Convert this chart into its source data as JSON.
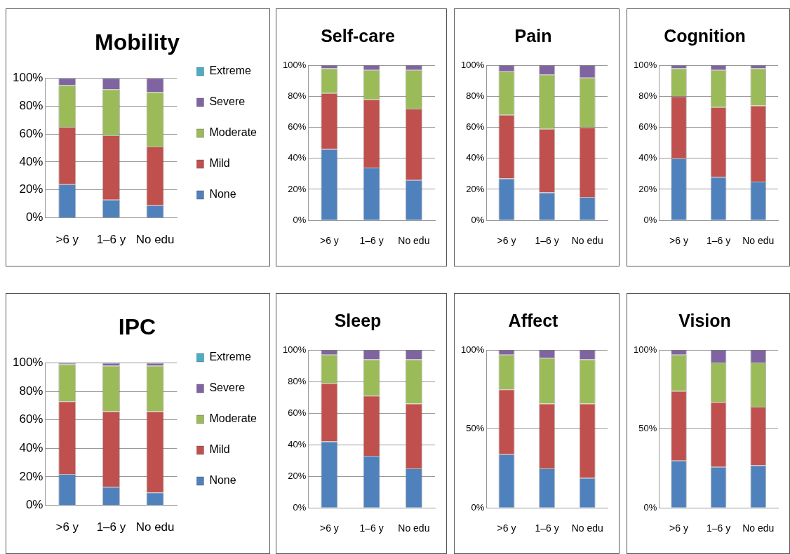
{
  "chart_data": [
    {
      "type": "bar",
      "title": "Mobility",
      "categories": [
        ">6 y",
        "1–6 y",
        "No edu"
      ],
      "stacked": true,
      "legend": "right",
      "grid": "y",
      "ylim": [
        0,
        100
      ],
      "yticks": [
        {
          "value": 0,
          "label": "0%"
        },
        {
          "value": 20,
          "label": "20%"
        },
        {
          "value": 40,
          "label": "40%"
        },
        {
          "value": 60,
          "label": "60%"
        },
        {
          "value": 80,
          "label": "80%"
        },
        {
          "value": 100,
          "label": "100%"
        }
      ],
      "series": [
        {
          "name": "None",
          "color": "#4f81bd",
          "values": [
            24,
            13,
            9
          ]
        },
        {
          "name": "Mild",
          "color": "#c0504d",
          "values": [
            41,
            46,
            42
          ]
        },
        {
          "name": "Moderate",
          "color": "#9bbb59",
          "values": [
            30,
            33,
            39
          ]
        },
        {
          "name": "Severe",
          "color": "#8064a2",
          "values": [
            5,
            8,
            10
          ]
        },
        {
          "name": "Extreme",
          "color": "#4bacc6",
          "values": [
            0,
            0,
            0
          ]
        }
      ]
    },
    {
      "type": "bar",
      "title": "Self-care",
      "categories": [
        ">6 y",
        "1–6 y",
        "No edu"
      ],
      "stacked": true,
      "grid": "y",
      "ylim": [
        0,
        100
      ],
      "yticks": [
        {
          "value": 0,
          "label": "0%"
        },
        {
          "value": 20,
          "label": "20%"
        },
        {
          "value": 40,
          "label": "40%"
        },
        {
          "value": 60,
          "label": "60%"
        },
        {
          "value": 80,
          "label": "80%"
        },
        {
          "value": 100,
          "label": "100%"
        }
      ],
      "series": [
        {
          "color": "#4f81bd",
          "values": [
            46,
            34,
            26
          ]
        },
        {
          "color": "#c0504d",
          "values": [
            36,
            44,
            46
          ]
        },
        {
          "color": "#9bbb59",
          "values": [
            16,
            19,
            25
          ]
        },
        {
          "color": "#8064a2",
          "values": [
            2,
            3,
            3
          ]
        }
      ]
    },
    {
      "type": "bar",
      "title": "Pain",
      "categories": [
        ">6 y",
        "1–6 y",
        "No edu"
      ],
      "stacked": true,
      "grid": "y",
      "ylim": [
        0,
        100
      ],
      "yticks": [
        {
          "value": 0,
          "label": "0%"
        },
        {
          "value": 20,
          "label": "20%"
        },
        {
          "value": 40,
          "label": "40%"
        },
        {
          "value": 60,
          "label": "60%"
        },
        {
          "value": 80,
          "label": "80%"
        },
        {
          "value": 100,
          "label": "100%"
        }
      ],
      "series": [
        {
          "color": "#4f81bd",
          "values": [
            27,
            18,
            15
          ]
        },
        {
          "color": "#c0504d",
          "values": [
            41,
            41,
            45
          ]
        },
        {
          "color": "#9bbb59",
          "values": [
            28,
            35,
            32
          ]
        },
        {
          "color": "#8064a2",
          "values": [
            4,
            6,
            8
          ]
        }
      ]
    },
    {
      "type": "bar",
      "title": "Cognition",
      "categories": [
        ">6 y",
        "1–6 y",
        "No edu"
      ],
      "stacked": true,
      "grid": "y",
      "ylim": [
        0,
        100
      ],
      "yticks": [
        {
          "value": 0,
          "label": "0%"
        },
        {
          "value": 20,
          "label": "20%"
        },
        {
          "value": 40,
          "label": "40%"
        },
        {
          "value": 60,
          "label": "60%"
        },
        {
          "value": 80,
          "label": "80%"
        },
        {
          "value": 100,
          "label": "100%"
        }
      ],
      "series": [
        {
          "color": "#4f81bd",
          "values": [
            40,
            28,
            25
          ]
        },
        {
          "color": "#c0504d",
          "values": [
            40,
            45,
            49
          ]
        },
        {
          "color": "#9bbb59",
          "values": [
            18,
            24,
            24
          ]
        },
        {
          "color": "#8064a2",
          "values": [
            2,
            3,
            2
          ]
        }
      ]
    },
    {
      "type": "bar",
      "title": "IPC",
      "categories": [
        ">6 y",
        "1–6 y",
        "No edu"
      ],
      "stacked": true,
      "legend": "right",
      "grid": "y",
      "ylim": [
        0,
        100
      ],
      "yticks": [
        {
          "value": 0,
          "label": "0%"
        },
        {
          "value": 20,
          "label": "20%"
        },
        {
          "value": 40,
          "label": "40%"
        },
        {
          "value": 60,
          "label": "60%"
        },
        {
          "value": 80,
          "label": "80%"
        },
        {
          "value": 100,
          "label": "100%"
        }
      ],
      "series": [
        {
          "name": "None",
          "color": "#4f81bd",
          "values": [
            22,
            13,
            9
          ]
        },
        {
          "name": "Mild",
          "color": "#c0504d",
          "values": [
            51,
            53,
            57
          ]
        },
        {
          "name": "Moderate",
          "color": "#9bbb59",
          "values": [
            26,
            32,
            32
          ]
        },
        {
          "name": "Severe",
          "color": "#8064a2",
          "values": [
            1,
            2,
            2
          ]
        },
        {
          "name": "Extreme",
          "color": "#4bacc6",
          "values": [
            0,
            0,
            0
          ]
        }
      ]
    },
    {
      "type": "bar",
      "title": "Sleep",
      "categories": [
        ">6 y",
        "1–6 y",
        "No edu"
      ],
      "stacked": true,
      "grid": "y",
      "ylim": [
        0,
        100
      ],
      "yticks": [
        {
          "value": 0,
          "label": "0%"
        },
        {
          "value": 20,
          "label": "20%"
        },
        {
          "value": 40,
          "label": "40%"
        },
        {
          "value": 60,
          "label": "60%"
        },
        {
          "value": 80,
          "label": "80%"
        },
        {
          "value": 100,
          "label": "100%"
        }
      ],
      "series": [
        {
          "color": "#4f81bd",
          "values": [
            42,
            33,
            25
          ]
        },
        {
          "color": "#c0504d",
          "values": [
            37,
            38,
            41
          ]
        },
        {
          "color": "#9bbb59",
          "values": [
            18,
            23,
            28
          ]
        },
        {
          "color": "#8064a2",
          "values": [
            3,
            6,
            6
          ]
        }
      ]
    },
    {
      "type": "bar",
      "title": "Affect",
      "categories": [
        ">6 y",
        "1–6 y",
        "No edu"
      ],
      "stacked": true,
      "grid": "y",
      "ylim": [
        0,
        100
      ],
      "yticks": [
        {
          "value": 0,
          "label": "0%"
        },
        {
          "value": 50,
          "label": "50%"
        },
        {
          "value": 100,
          "label": "100%"
        }
      ],
      "series": [
        {
          "color": "#4f81bd",
          "values": [
            34,
            25,
            19
          ]
        },
        {
          "color": "#c0504d",
          "values": [
            41,
            41,
            47
          ]
        },
        {
          "color": "#9bbb59",
          "values": [
            22,
            29,
            28
          ]
        },
        {
          "color": "#8064a2",
          "values": [
            3,
            5,
            6
          ]
        }
      ]
    },
    {
      "type": "bar",
      "title": "Vision",
      "categories": [
        ">6 y",
        "1–6 y",
        "No edu"
      ],
      "stacked": true,
      "grid": "y",
      "ylim": [
        0,
        100
      ],
      "yticks": [
        {
          "value": 0,
          "label": "0%"
        },
        {
          "value": 50,
          "label": "50%"
        },
        {
          "value": 100,
          "label": "100%"
        }
      ],
      "series": [
        {
          "color": "#4f81bd",
          "values": [
            30,
            26,
            27
          ]
        },
        {
          "color": "#c0504d",
          "values": [
            44,
            41,
            37
          ]
        },
        {
          "color": "#9bbb59",
          "values": [
            23,
            25,
            28
          ]
        },
        {
          "color": "#8064a2",
          "values": [
            3,
            8,
            8
          ]
        }
      ]
    }
  ]
}
